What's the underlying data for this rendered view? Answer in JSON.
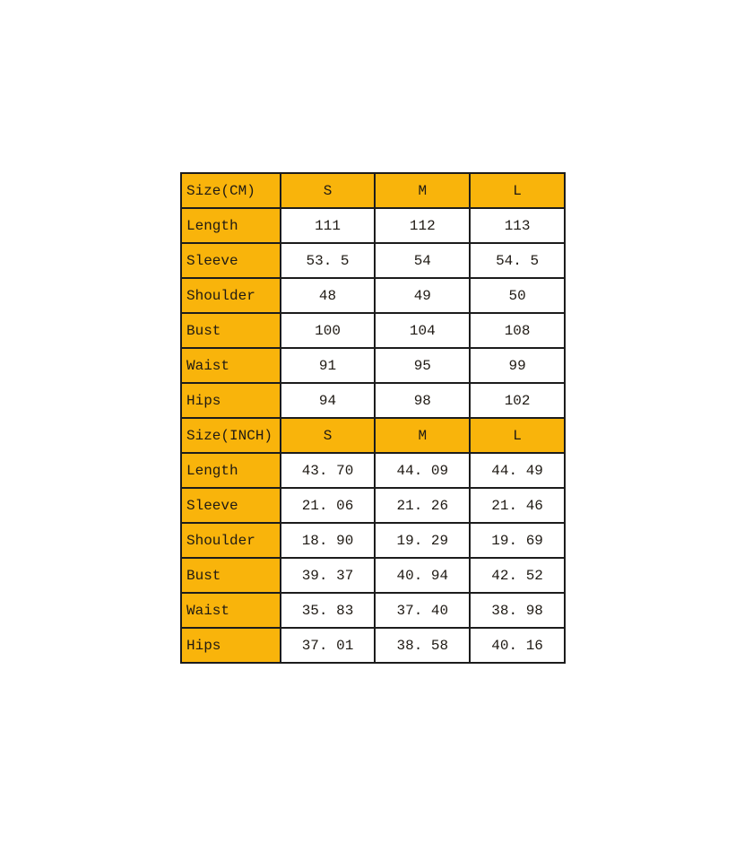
{
  "page": {
    "background_color": "#ffffff"
  },
  "table": {
    "accent_color": "#f9b40b",
    "border_color": "#1c1c1c",
    "text_color": "#1f1a14",
    "sections": [
      {
        "header_label": "Size(CM)",
        "columns": [
          "S",
          "M",
          "L"
        ],
        "rows": [
          {
            "label": "Length",
            "values": [
              "111",
              "112",
              "113"
            ]
          },
          {
            "label": "Sleeve",
            "values": [
              "53. 5",
              "54",
              "54. 5"
            ]
          },
          {
            "label": "Shoulder",
            "values": [
              "48",
              "49",
              "50"
            ]
          },
          {
            "label": "Bust",
            "values": [
              "100",
              "104",
              "108"
            ]
          },
          {
            "label": "Waist",
            "values": [
              "91",
              "95",
              "99"
            ]
          },
          {
            "label": "Hips",
            "values": [
              "94",
              "98",
              "102"
            ]
          }
        ]
      },
      {
        "header_label": "Size(INCH)",
        "columns": [
          "S",
          "M",
          "L"
        ],
        "rows": [
          {
            "label": "Length",
            "values": [
              "43. 70",
              "44. 09",
              "44. 49"
            ]
          },
          {
            "label": "Sleeve",
            "values": [
              "21. 06",
              "21. 26",
              "21. 46"
            ]
          },
          {
            "label": "Shoulder",
            "values": [
              "18. 90",
              "19. 29",
              "19. 69"
            ]
          },
          {
            "label": "Bust",
            "values": [
              "39. 37",
              "40. 94",
              "42. 52"
            ]
          },
          {
            "label": "Waist",
            "values": [
              "35. 83",
              "37. 40",
              "38. 98"
            ]
          },
          {
            "label": "Hips",
            "values": [
              "37. 01",
              "38. 58",
              "40. 16"
            ]
          }
        ]
      }
    ]
  },
  "chart_data": {
    "type": "table",
    "sections": [
      {
        "unit": "CM",
        "size_header": "Size(CM)",
        "columns": [
          "S",
          "M",
          "L"
        ],
        "rows": [
          {
            "measure": "Length",
            "values": [
              111,
              112,
              113
            ]
          },
          {
            "measure": "Sleeve",
            "values": [
              53.5,
              54,
              54.5
            ]
          },
          {
            "measure": "Shoulder",
            "values": [
              48,
              49,
              50
            ]
          },
          {
            "measure": "Bust",
            "values": [
              100,
              104,
              108
            ]
          },
          {
            "measure": "Waist",
            "values": [
              91,
              95,
              99
            ]
          },
          {
            "measure": "Hips",
            "values": [
              94,
              98,
              102
            ]
          }
        ]
      },
      {
        "unit": "INCH",
        "size_header": "Size(INCH)",
        "columns": [
          "S",
          "M",
          "L"
        ],
        "rows": [
          {
            "measure": "Length",
            "values": [
              43.7,
              44.09,
              44.49
            ]
          },
          {
            "measure": "Sleeve",
            "values": [
              21.06,
              21.26,
              21.46
            ]
          },
          {
            "measure": "Shoulder",
            "values": [
              18.9,
              19.29,
              19.69
            ]
          },
          {
            "measure": "Bust",
            "values": [
              39.37,
              40.94,
              42.52
            ]
          },
          {
            "measure": "Waist",
            "values": [
              35.83,
              37.4,
              38.98
            ]
          },
          {
            "measure": "Hips",
            "values": [
              37.01,
              38.58,
              40.16
            ]
          }
        ]
      }
    ]
  }
}
